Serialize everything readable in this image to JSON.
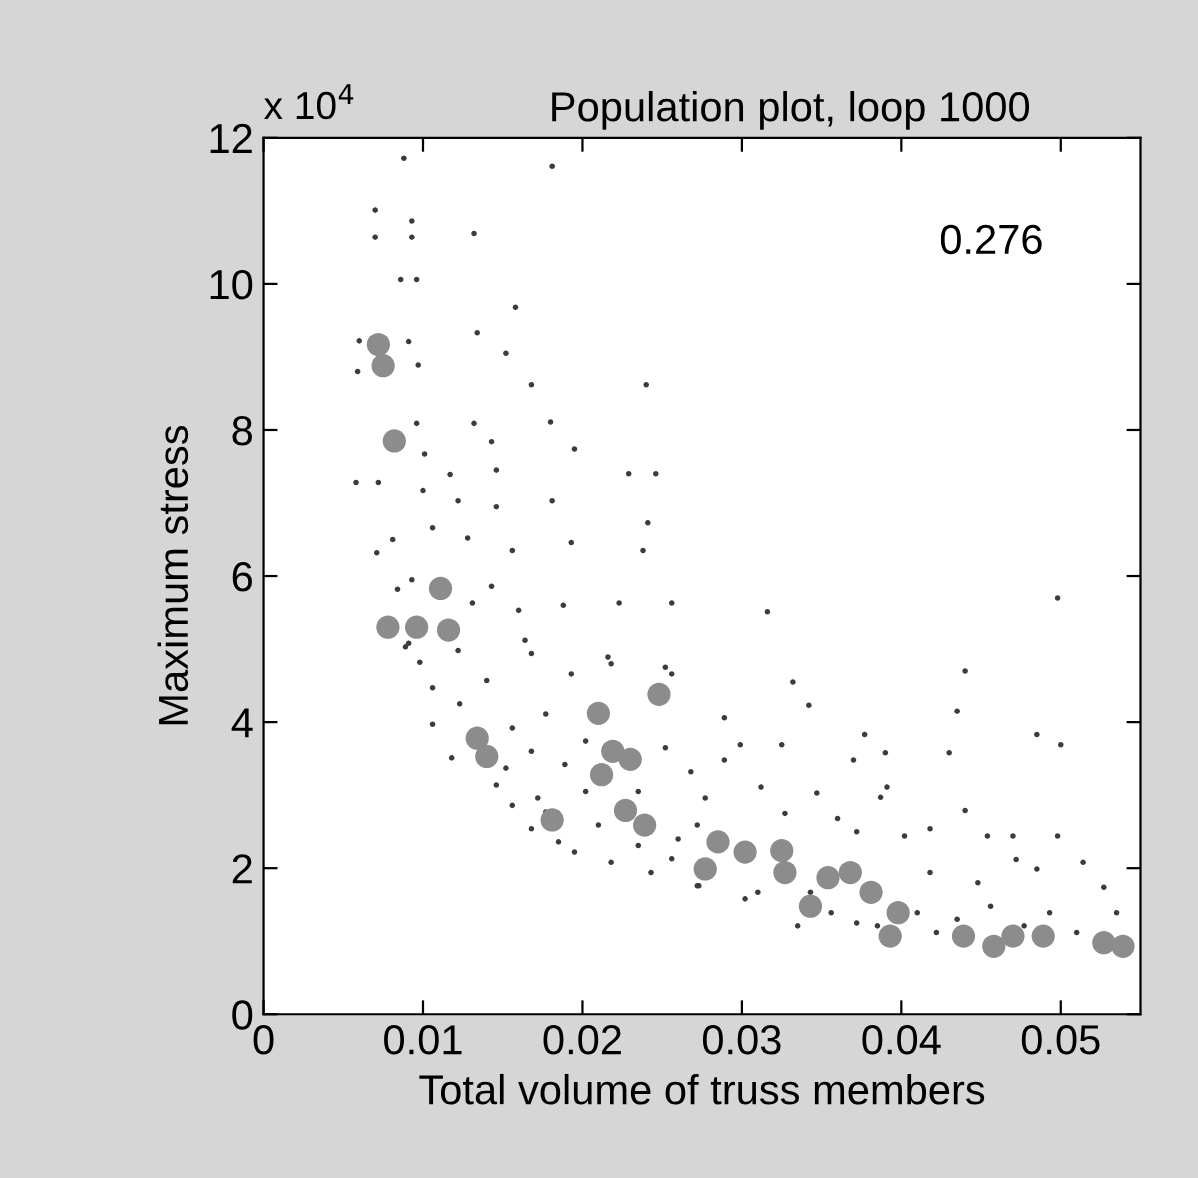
{
  "chart_data": {
    "type": "scatter",
    "title": "Population plot, loop 1000",
    "xlabel": "Total volume of truss members",
    "ylabel": "Maximum stress",
    "annotations": [
      "x 10$^{4}$",
      "0.276"
    ],
    "xlim": [
      0,
      0.055
    ],
    "xticks": [
      0,
      0.01,
      0.02,
      0.03,
      0.04,
      0.05
    ],
    "ylim": [
      0,
      12
    ],
    "yticks": [
      0,
      2,
      4,
      6,
      8,
      10,
      12
    ],
    "grid": false,
    "marker": "circle",
    "series": [
      {
        "color": "#3c3c3c",
        "x": [
          0.0088,
          0.0181,
          0.007,
          0.0093,
          0.007,
          0.0093,
          0.0132,
          0.0086,
          0.0096,
          0.0158,
          0.0134,
          0.006,
          0.0091,
          0.0152,
          0.0059,
          0.0097,
          0.0168,
          0.024,
          0.018,
          0.0096,
          0.0132,
          0.0143,
          0.0195,
          0.0101,
          0.0058,
          0.0072,
          0.0117,
          0.0146,
          0.0229,
          0.0246,
          0.01,
          0.0122,
          0.0181,
          0.0146,
          0.0241,
          0.0106,
          0.0081,
          0.0128,
          0.0193,
          0.0238,
          0.0156,
          0.0071,
          0.0093,
          0.0143,
          0.0084,
          0.0131,
          0.016,
          0.0188,
          0.0223,
          0.0256,
          0.0091,
          0.0122,
          0.0164,
          0.0216,
          0.0252,
          0.0089,
          0.0098,
          0.0106,
          0.014,
          0.0168,
          0.0193,
          0.0218,
          0.0256,
          0.0106,
          0.0123,
          0.0156,
          0.0177,
          0.0202,
          0.0252,
          0.0118,
          0.0152,
          0.0168,
          0.0189,
          0.0268,
          0.0146,
          0.0156,
          0.0172,
          0.0202,
          0.0235,
          0.0277,
          0.0168,
          0.0185,
          0.021,
          0.0235,
          0.026,
          0.0218,
          0.0243,
          0.0273,
          0.0195,
          0.0256,
          0.0177,
          0.0316,
          0.0498,
          0.0332,
          0.044,
          0.0435,
          0.0342,
          0.0289,
          0.0485,
          0.05,
          0.0299,
          0.0325,
          0.0377,
          0.039,
          0.043,
          0.037,
          0.0289,
          0.0312,
          0.0347,
          0.0387,
          0.0391,
          0.044,
          0.036,
          0.0327,
          0.0418,
          0.0372,
          0.0402,
          0.0454,
          0.047,
          0.0498,
          0.0472,
          0.0514,
          0.0272,
          0.0485,
          0.0527,
          0.0418,
          0.0448,
          0.031,
          0.0343,
          0.0356,
          0.0372,
          0.0385,
          0.041,
          0.0435,
          0.0456,
          0.0477,
          0.051,
          0.0535,
          0.0335,
          0.0302,
          0.0272,
          0.0493,
          0.0422
        ],
        "values": [
          11.72,
          11.61,
          11.01,
          10.86,
          10.64,
          10.64,
          10.69,
          10.06,
          10.06,
          9.68,
          9.33,
          9.22,
          9.21,
          9.05,
          8.8,
          8.89,
          8.62,
          8.62,
          8.11,
          8.09,
          8.09,
          7.84,
          7.74,
          7.67,
          7.28,
          7.28,
          7.39,
          7.45,
          7.4,
          7.4,
          7.17,
          7.03,
          7.03,
          6.95,
          6.73,
          6.66,
          6.5,
          6.52,
          6.46,
          6.35,
          6.35,
          6.32,
          5.95,
          5.86,
          5.82,
          5.63,
          5.53,
          5.6,
          5.63,
          5.63,
          5.08,
          4.98,
          5.12,
          4.89,
          4.75,
          5.03,
          4.82,
          4.47,
          4.57,
          4.94,
          4.66,
          4.8,
          4.66,
          3.97,
          4.25,
          3.92,
          4.11,
          3.74,
          3.65,
          3.51,
          3.37,
          3.6,
          3.42,
          3.32,
          3.14,
          2.86,
          2.96,
          3.05,
          3.05,
          2.96,
          2.54,
          2.36,
          2.59,
          2.31,
          2.4,
          2.08,
          1.94,
          1.76,
          2.22,
          2.13,
          2.77,
          5.51,
          5.7,
          4.55,
          4.7,
          4.15,
          4.23,
          4.06,
          3.83,
          3.69,
          3.69,
          3.69,
          3.83,
          3.58,
          3.58,
          3.48,
          3.48,
          3.11,
          3.03,
          2.97,
          3.11,
          2.79,
          2.68,
          2.75,
          2.54,
          2.5,
          2.44,
          2.44,
          2.44,
          2.44,
          2.12,
          2.08,
          2.59,
          1.99,
          1.74,
          1.94,
          1.8,
          1.67,
          1.67,
          1.39,
          1.25,
          1.21,
          1.39,
          1.3,
          1.48,
          1.21,
          1.12,
          1.39,
          1.21,
          1.58,
          1.76,
          1.39,
          1.12
        ]
      },
      {
        "color": "#8c8c8c",
        "x": [
          0.0072,
          0.0075,
          0.0082,
          0.0111,
          0.0078,
          0.0096,
          0.0116,
          0.0134,
          0.014,
          0.0181,
          0.021,
          0.0219,
          0.023,
          0.0212,
          0.0248,
          0.0227,
          0.0239,
          0.0277,
          0.0302,
          0.0325,
          0.0327,
          0.0354,
          0.0368,
          0.0343,
          0.0398,
          0.0393,
          0.0439,
          0.0458,
          0.047,
          0.0489,
          0.0527,
          0.0539,
          0.0381,
          0.0285
        ],
        "values": [
          9.17,
          8.88,
          7.85,
          5.83,
          5.3,
          5.3,
          5.26,
          3.78,
          3.53,
          2.66,
          4.12,
          3.6,
          3.49,
          3.28,
          4.38,
          2.79,
          2.59,
          1.99,
          2.22,
          2.24,
          1.94,
          1.87,
          1.94,
          1.48,
          1.39,
          1.07,
          1.07,
          0.93,
          1.07,
          1.07,
          0.98,
          0.93,
          1.67,
          2.36
        ]
      }
    ]
  }
}
